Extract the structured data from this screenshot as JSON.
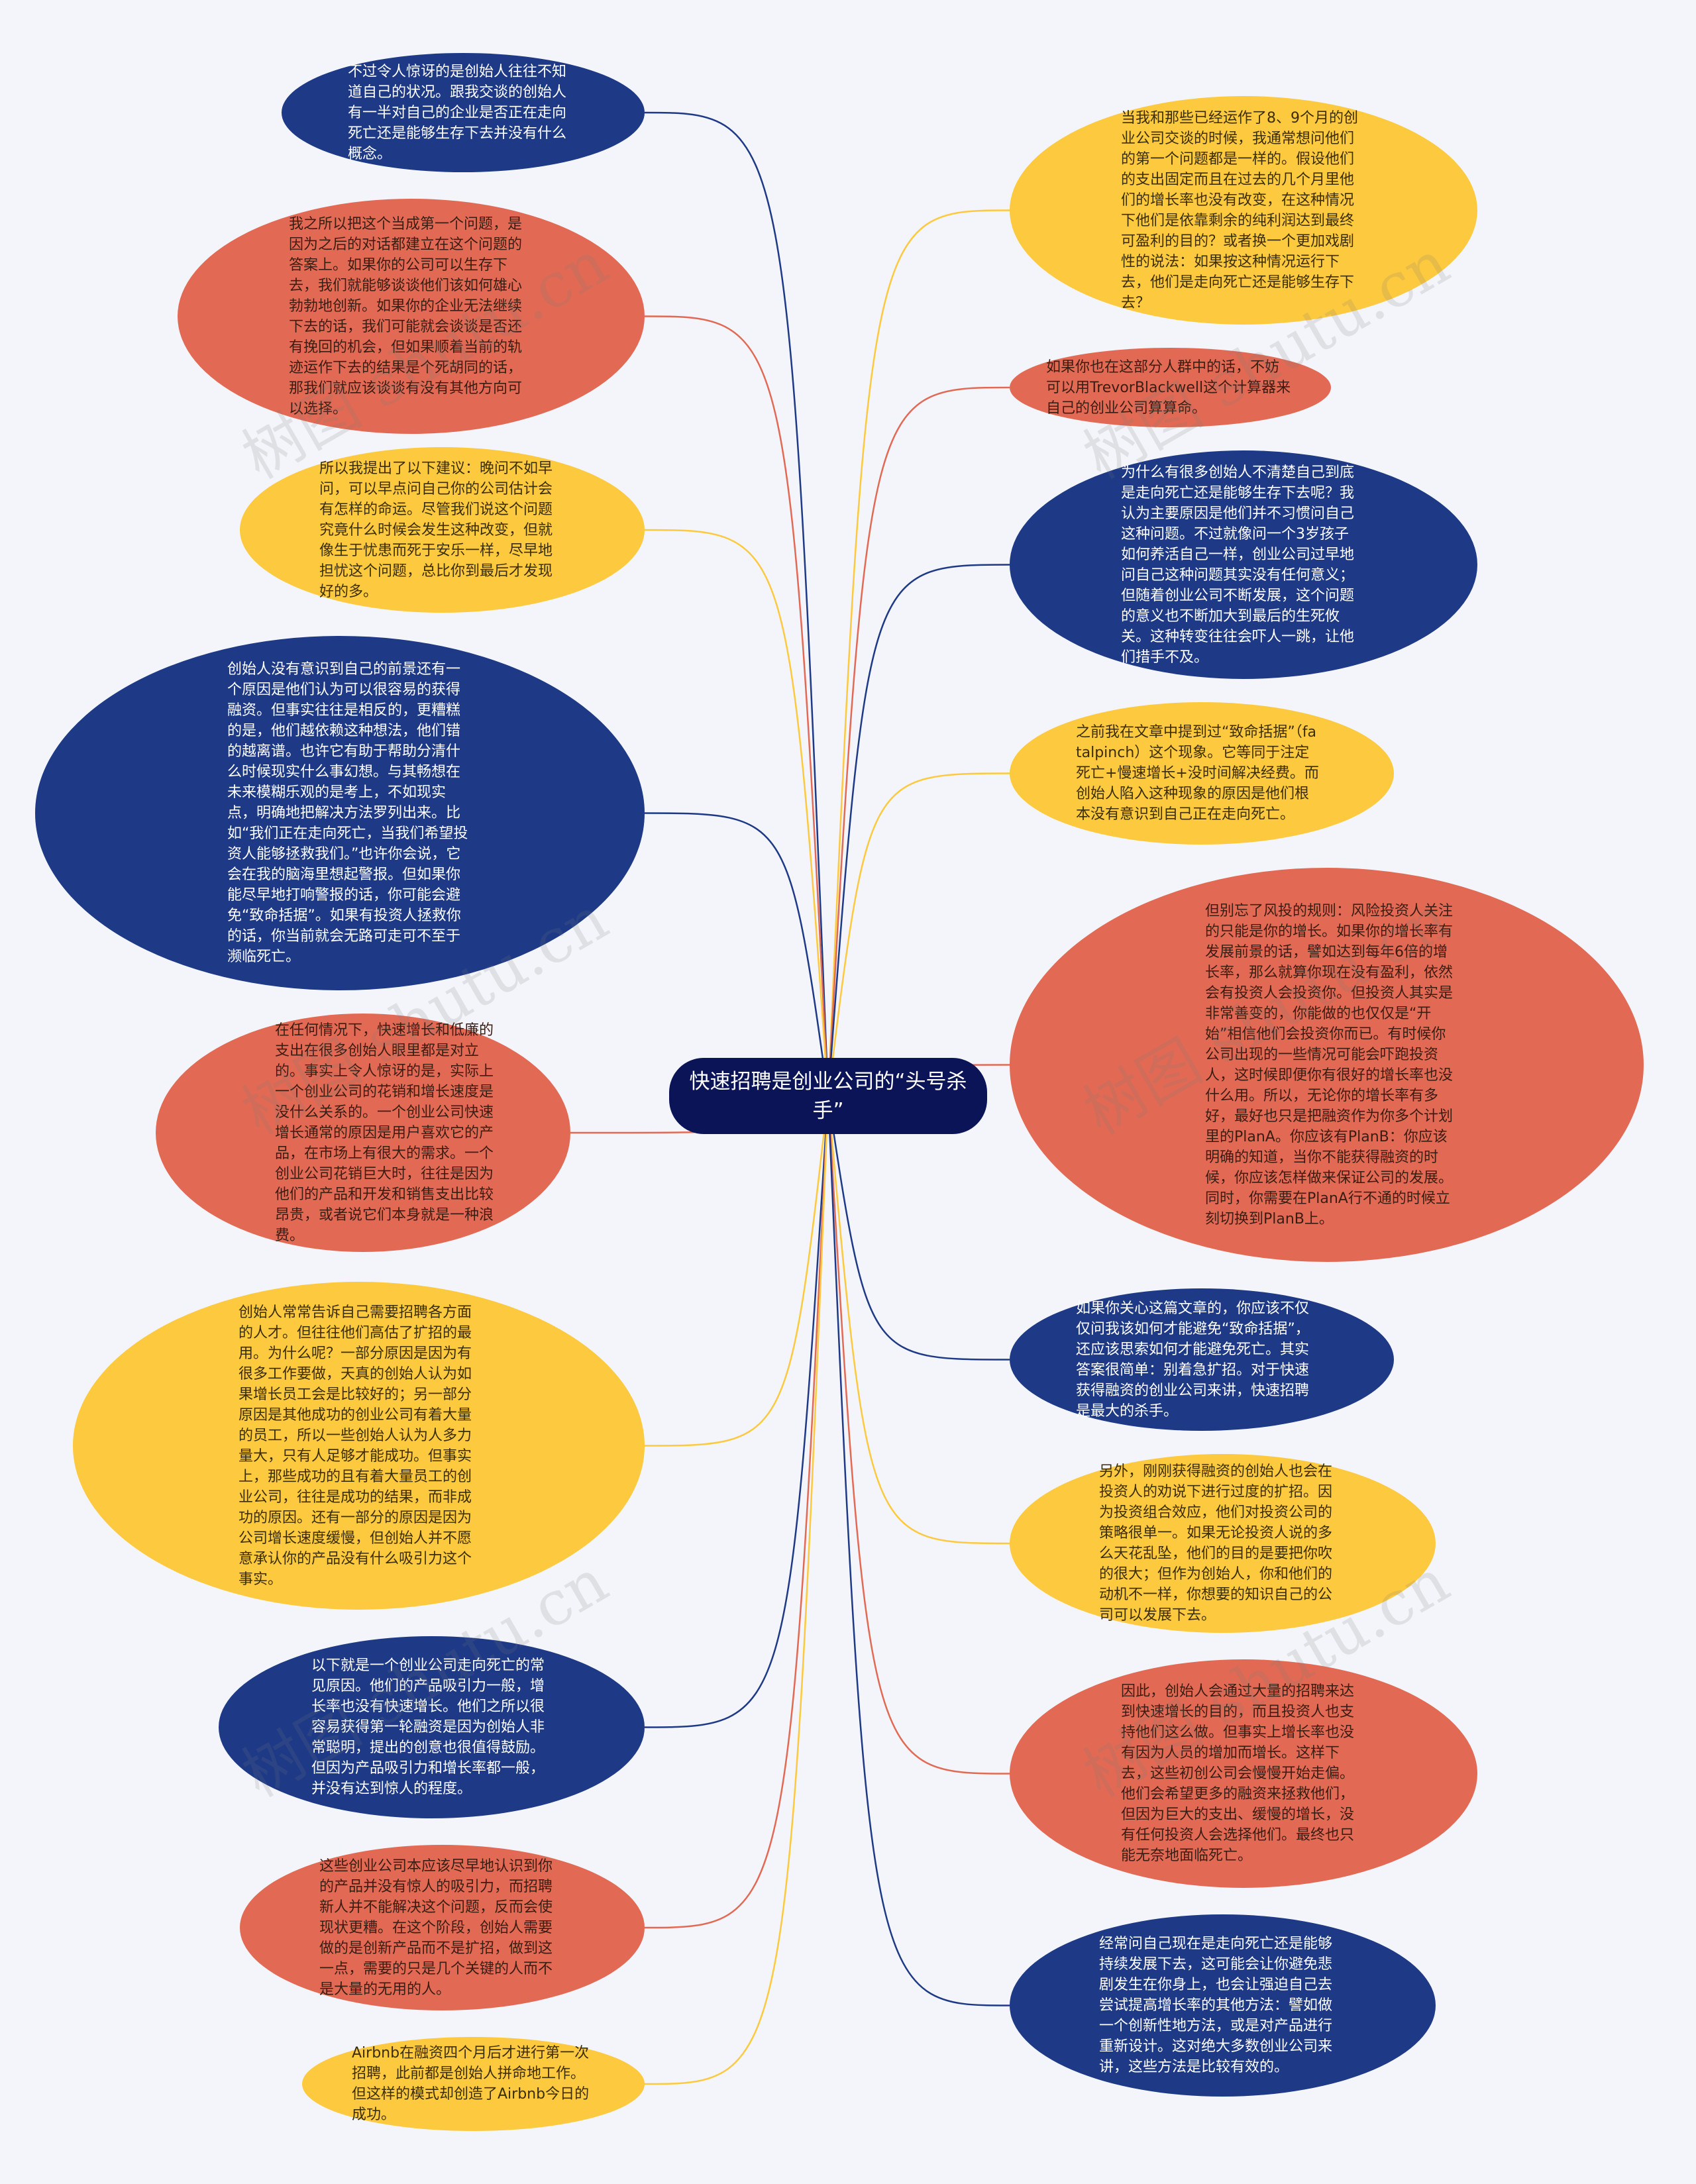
{
  "root": {
    "title": "快速招聘是创业公司的“头号杀手”"
  },
  "watermark": "树图 shutu.cn",
  "colors": {
    "blue": "#1e3a87",
    "red": "#e26a55",
    "yellow": "#fcc93f",
    "center": "#0b1456"
  },
  "left_nodes": [
    {
      "color": "blue",
      "text": "不过令人惊讶的是创始人往往不知道自己的状况。跟我交谈的创始人有一半对自己的企业是否正在走向死亡还是能够生存下去并没有什么概念。"
    },
    {
      "color": "red",
      "text": "我之所以把这个当成第一个问题，是因为之后的对话都建立在这个问题的答案上。如果你的公司可以生存下去，我们就能够谈谈他们该如何雄心勃勃地创新。如果你的企业无法继续下去的话，我们可能就会谈谈是否还有挽回的机会，但如果顺着当前的轨迹运作下去的结果是个死胡同的话，那我们就应该谈谈有没有其他方向可以选择。"
    },
    {
      "color": "yellow",
      "text": "所以我提出了以下建议：晚问不如早问，可以早点问自己你的公司估计会有怎样的命运。尽管我们说这个问题究竟什么时候会发生这种改变，但就像生于忧患而死于安乐一样，尽早地担忧这个问题，总比你到最后才发现好的多。"
    },
    {
      "color": "blue",
      "text": "创始人没有意识到自己的前景还有一个原因是他们认为可以很容易的获得融资。但事实往往是相反的，更糟糕的是，他们越依赖这种想法，他们错的越离谱。也许它有助于帮助分清什么时候现实什么事幻想。与其畅想在未来模糊乐观的是考上，不如现实点，明确地把解决方法罗列出来。比如“我们正在走向死亡，当我们希望投资人能够拯救我们。”也许你会说，它会在我的脑海里想起警报。但如果你能尽早地打响警报的话，你可能会避免“致命括据”。如果有投资人拯救你的话，你当前就会无路可走可不至于濒临死亡。"
    },
    {
      "color": "red",
      "text": "在任何情况下，快速增长和低廉的支出在很多创始人眼里都是对立的。事实上令人惊讶的是，实际上一个创业公司的花销和增长速度是没什么关系的。一个创业公司快速增长通常的原因是用户喜欢它的产品，在市场上有很大的需求。一个创业公司花销巨大时，往往是因为他们的产品和开发和销售支出比较昂贵，或者说它们本身就是一种浪费。"
    },
    {
      "color": "yellow",
      "text": "创始人常常告诉自己需要招聘各方面的人才。但往往他们高估了扩招的最用。为什么呢？一部分原因是因为有很多工作要做，天真的创始人认为如果增长员工会是比较好的；另一部分原因是其他成功的创业公司有着大量的员工，所以一些创始人认为人多力量大，只有人足够才能成功。但事实上，那些成功的且有着大量员工的创业公司，往往是成功的结果，而非成功的原因。还有一部分的原因是因为公司增长速度缓慢，但创始人并不愿意承认你的产品没有什么吸引力这个事实。"
    },
    {
      "color": "blue",
      "text": "以下就是一个创业公司走向死亡的常见原因。他们的产品吸引力一般，增长率也没有快速增长。他们之所以很容易获得第一轮融资是因为创始人非常聪明，提出的创意也很值得鼓励。但因为产品吸引力和增长率都一般，并没有达到惊人的程度。"
    },
    {
      "color": "red",
      "text": "这些创业公司本应该尽早地认识到你的产品并没有惊人的吸引力，而招聘新人并不能解决这个问题，反而会使现状更糟。在这个阶段，创始人需要做的是创新产品而不是扩招，做到这一点，需要的只是几个关键的人而不是大量的无用的人。"
    },
    {
      "color": "yellow",
      "text": "Airbnb在融资四个月后才进行第一次招聘，此前都是创始人拼命地工作。但这样的模式却创造了Airbnb今日的成功。"
    }
  ],
  "right_nodes": [
    {
      "color": "yellow",
      "text": "当我和那些已经运作了8、9个月的创业公司交谈的时候，我通常想问他们的第一个问题都是一样的。假设他们的支出固定而且在过去的几个月里他们的增长率也没有改变，在这种情况下他们是依靠剩余的纯利润达到最终可盈利的目的？或者换一个更加戏剧性的说法：如果按这种情况运行下去，他们是走向死亡还是能够生存下去？"
    },
    {
      "color": "red",
      "text": "如果你也在这部分人群中的话，不妨可以用TrevorBlackwell这个计算器来自己的创业公司算算命。"
    },
    {
      "color": "blue",
      "text": "为什么有很多创始人不清楚自己到底是走向死亡还是能够生存下去呢？我认为主要原因是他们并不习惯问自己这种问题。不过就像问一个3岁孩子如何养活自己一样，创业公司过早地问自己这种问题其实没有任何意义；但随着创业公司不断发展，这个问题的意义也不断加大到最后的生死攸关。这种转变往往会吓人一跳，让他们措手不及。"
    },
    {
      "color": "yellow",
      "text": "之前我在文章中提到过“致命括据”（fatalpinch）这个现象。它等同于注定死亡+慢速增长+没时间解决经费。而创始人陷入这种现象的原因是他们根本没有意识到自己正在走向死亡。"
    },
    {
      "color": "red",
      "text": "但别忘了风投的规则：风险投资人关注的只能是你的增长。如果你的增长率有发展前景的话，譬如达到每年6倍的增长率，那么就算你现在没有盈利，依然会有投资人会投资你。但投资人其实是非常善变的，你能做的也仅仅是“开始”相信他们会投资你而已。有时候你公司出现的一些情况可能会吓跑投资人，这时候即便你有很好的增长率也没什么用。所以，无论你的增长率有多好，最好也只是把融资作为你多个计划里的PlanA。你应该有PlanB：你应该明确的知道，当你不能获得融资的时候，你应该怎样做来保证公司的发展。同时，你需要在PlanA行不通的时候立刻切换到PlanB上。"
    },
    {
      "color": "blue",
      "text": "如果你关心这篇文章的，你应该不仅仅问我该如何才能避免“致命括据”，还应该思索如何才能避免死亡。其实答案很简单：别着急扩招。对于快速获得融资的创业公司来讲，快速招聘是最大的杀手。"
    },
    {
      "color": "yellow",
      "text": "另外，刚刚获得融资的创始人也会在投资人的劝说下进行过度的扩招。因为投资组合效应，他们对投资公司的策略很单一。如果无论投资人说的多么天花乱坠，他们的目的是要把你吹的很大；但作为创始人，你和他们的动机不一样，你想要的知识自己的公司可以发展下去。"
    },
    {
      "color": "red",
      "text": "因此，创始人会通过大量的招聘来达到快速增长的目的，而且投资人也支持他们这么做。但事实上增长率也没有因为人员的增加而增长。这样下去，这些初创公司会慢慢开始走偏。他们会希望更多的融资来拯救他们，但因为巨大的支出、缓慢的增长，没有任何投资人会选择他们。最终也只能无奈地面临死亡。"
    },
    {
      "color": "blue",
      "text": "经常问自己现在是走向死亡还是能够持续发展下去，这可能会让你避免悲剧发生在你身上，也会让强迫自己去尝试提高增长率的其他方法：譬如做一个创新性地方法，或是对产品进行重新设计。这对绝大多数创业公司来讲，这些方法是比较有效的。"
    }
  ]
}
